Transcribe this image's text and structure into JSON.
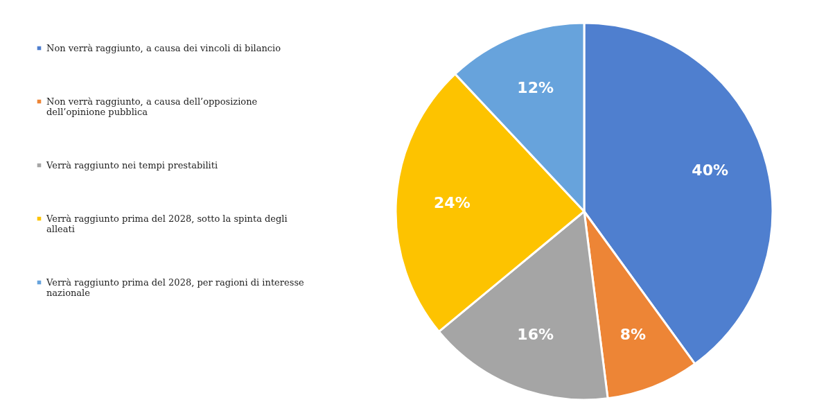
{
  "chart_data": {
    "type": "pie",
    "categories": [
      "Non verrà raggiunto, a causa dei vincoli di bilancio",
      "Non verrà raggiunto, a causa dell’opposizione dell’opinione pubblica",
      "Verrà raggiunto nei tempi prestabiliti",
      "Verrà raggiunto prima del 2028, sotto la spinta degli alleati",
      "Verrà raggiunto prima del 2028, per ragioni di interesse nazionale"
    ],
    "values": [
      40,
      8,
      16,
      24,
      12
    ],
    "value_labels": [
      "40%",
      "8%",
      "16%",
      "24%",
      "12%"
    ],
    "colors": [
      "#4f7fcf",
      "#ed8536",
      "#a5a5a5",
      "#fdc300",
      "#67a3dc"
    ],
    "legend": "left"
  }
}
